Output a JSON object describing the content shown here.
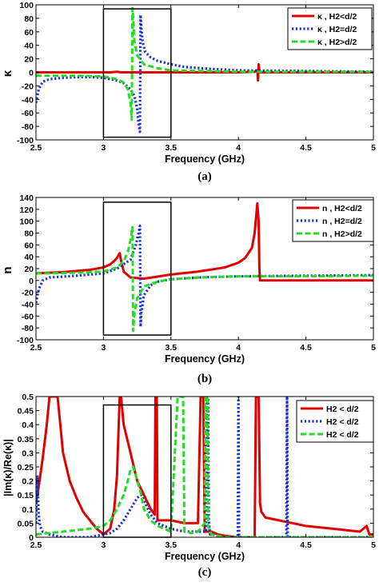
{
  "chart_data": [
    {
      "type": "line",
      "panel_label": "(a)",
      "xlabel": "Frequency (GHz)",
      "ylabel": "κ",
      "xlim": [
        2.5,
        5
      ],
      "ylim": [
        -100,
        100
      ],
      "xticks": [
        "2.5",
        "3",
        "3.5",
        "4",
        "4.5",
        "5"
      ],
      "yticks": [
        "-100",
        "-80",
        "-60",
        "-40",
        "-20",
        "0",
        "20",
        "40",
        "60",
        "80",
        "100"
      ],
      "legend_position": "top-right",
      "highlight_box": {
        "x": [
          3.0,
          3.5
        ],
        "y": [
          -96,
          94
        ]
      },
      "series": [
        {
          "name": "κ , H2<d/2",
          "color": "#e00000",
          "style": "solid",
          "x": [
            2.5,
            2.8,
            3.05,
            3.1,
            3.13,
            3.2,
            3.5,
            4.0,
            4.12,
            4.14,
            4.145,
            4.15,
            4.155,
            4.16,
            4.2,
            4.5,
            5.0
          ],
          "y": [
            0,
            0,
            0,
            1,
            0,
            0,
            0,
            0,
            1,
            3,
            -12,
            12,
            2,
            0,
            0,
            0,
            0
          ]
        },
        {
          "name": "κ , H2=d/2",
          "color": "#1a2fd6",
          "style": "dotted",
          "x": [
            2.5,
            2.52,
            2.55,
            2.6,
            2.7,
            2.8,
            2.9,
            3.0,
            3.05,
            3.1,
            3.15,
            3.2,
            3.23,
            3.25,
            3.26,
            3.27,
            3.275,
            3.28,
            3.29,
            3.31,
            3.35,
            3.4,
            3.5,
            3.6,
            3.8,
            4.0,
            4.5,
            5.0
          ],
          "y": [
            -45,
            -25,
            -14,
            -10,
            -8,
            -7,
            -7,
            -8,
            -10,
            -12,
            -16,
            -25,
            -35,
            -55,
            -75,
            -88,
            85,
            65,
            45,
            30,
            22,
            17,
            12,
            8,
            5,
            3,
            2,
            1
          ]
        },
        {
          "name": "κ , H2>d/2",
          "color": "#22dd22",
          "style": "dashed",
          "x": [
            2.5,
            2.6,
            2.8,
            3.0,
            3.05,
            3.1,
            3.15,
            3.18,
            3.2,
            3.21,
            3.215,
            3.22,
            3.23,
            3.25,
            3.3,
            3.4,
            3.5,
            4.0,
            4.5,
            5.0
          ],
          "y": [
            -5,
            -5,
            -5,
            -6,
            -8,
            -10,
            -15,
            -25,
            -45,
            -70,
            95,
            80,
            45,
            25,
            12,
            6,
            3,
            1,
            1,
            1
          ]
        }
      ]
    },
    {
      "type": "line",
      "panel_label": "(b)",
      "xlabel": "Frequency (GHz)",
      "ylabel": "n",
      "xlim": [
        2.5,
        5
      ],
      "ylim": [
        -100,
        140
      ],
      "xticks": [
        "2.5",
        "3",
        "3.5",
        "4",
        "4.5",
        "5"
      ],
      "yticks": [
        "-100",
        "-80",
        "-60",
        "-40",
        "-20",
        "0",
        "20",
        "40",
        "60",
        "80",
        "100",
        "120",
        "140"
      ],
      "legend_position": "top-right",
      "highlight_box": {
        "x": [
          3.0,
          3.5
        ],
        "y": [
          -92,
          132
        ]
      },
      "series": [
        {
          "name": "n , H2<d/2",
          "color": "#e00000",
          "style": "solid",
          "x": [
            2.5,
            2.7,
            2.9,
            3.0,
            3.05,
            3.08,
            3.1,
            3.12,
            3.13,
            3.15,
            3.2,
            3.3,
            3.5,
            3.7,
            3.9,
            4.0,
            4.05,
            4.1,
            4.12,
            4.14,
            4.15,
            4.155,
            4.16,
            4.2,
            4.5,
            5.0
          ],
          "y": [
            12,
            14,
            18,
            22,
            27,
            33,
            38,
            46,
            35,
            15,
            5,
            3,
            10,
            15,
            22,
            30,
            38,
            55,
            80,
            130,
            100,
            20,
            0,
            0,
            0,
            0
          ]
        },
        {
          "name": "n , H2=d/2",
          "color": "#1a2fd6",
          "style": "dotted",
          "x": [
            2.5,
            2.52,
            2.55,
            2.6,
            2.8,
            3.0,
            3.1,
            3.2,
            3.24,
            3.26,
            3.27,
            3.275,
            3.28,
            3.3,
            3.35,
            3.4,
            3.5,
            3.7,
            4.0,
            4.5,
            5.0
          ],
          "y": [
            -38,
            -15,
            0,
            5,
            8,
            12,
            20,
            35,
            60,
            80,
            92,
            -78,
            -55,
            -25,
            -8,
            -2,
            2,
            5,
            7,
            8,
            9
          ]
        },
        {
          "name": "n , H2>d/2",
          "color": "#22dd22",
          "style": "dashed",
          "x": [
            2.5,
            2.6,
            2.8,
            3.0,
            3.1,
            3.15,
            3.18,
            3.2,
            3.215,
            3.22,
            3.23,
            3.25,
            3.3,
            3.4,
            3.5,
            3.7,
            4.0,
            4.5,
            5.0
          ],
          "y": [
            12,
            12,
            13,
            15,
            22,
            32,
            48,
            68,
            90,
            -85,
            -55,
            -30,
            -10,
            -2,
            2,
            5,
            7,
            7,
            8
          ]
        }
      ]
    },
    {
      "type": "line",
      "panel_label": "(c)",
      "xlabel": "Frequency (GHz)",
      "ylabel": "|Im(κ)/Re(κ)|",
      "xlim": [
        2.5,
        5
      ],
      "ylim": [
        0,
        0.5
      ],
      "xticks": [
        "2.5",
        "3",
        "3.5",
        "4",
        "4.5",
        "5"
      ],
      "yticks": [
        "0",
        "0.05",
        "0.1",
        "0.15",
        "0.2",
        "0.25",
        "0.3",
        "0.35",
        "0.4",
        "0.45",
        "0.5"
      ],
      "legend_position": "top-right",
      "highlight_box": {
        "x": [
          3.0,
          3.5
        ],
        "y": [
          0,
          0.47
        ]
      },
      "series": [
        {
          "name": "H2 < d/2",
          "color": "#e00000",
          "style": "solid",
          "x": [
            2.5,
            2.52,
            2.55,
            2.58,
            2.6,
            2.62,
            2.64,
            2.66,
            2.7,
            2.75,
            2.8,
            2.85,
            2.9,
            2.95,
            3.0,
            3.05,
            3.08,
            3.1,
            3.12,
            3.13,
            3.15,
            3.2,
            3.25,
            3.3,
            3.35,
            3.38,
            3.385,
            3.39,
            3.395,
            3.4,
            3.45,
            3.5,
            3.6,
            3.7,
            3.72,
            3.73,
            3.74,
            3.75,
            3.8,
            3.85,
            3.9,
            4.0,
            4.1,
            4.12,
            4.13,
            4.14,
            4.15,
            4.16,
            4.17,
            4.2,
            4.3,
            4.5,
            4.7,
            4.9,
            4.95,
            4.97,
            5.0
          ],
          "y": [
            0.12,
            0.18,
            0.28,
            0.4,
            0.5,
            0.5,
            0.5,
            0.5,
            0.3,
            0.2,
            0.14,
            0.09,
            0.06,
            0.03,
            0.01,
            0.03,
            0.1,
            0.22,
            0.5,
            0.5,
            0.4,
            0.3,
            0.2,
            0.15,
            0.1,
            0.08,
            0.5,
            0.5,
            0.5,
            0.06,
            0.06,
            0.06,
            0.05,
            0.05,
            0.5,
            0.5,
            0.5,
            0.02,
            0.02,
            0.01,
            0.005,
            0.0,
            0.0,
            0.0,
            0.5,
            0.5,
            0.5,
            0.12,
            0.09,
            0.07,
            0.06,
            0.04,
            0.03,
            0.02,
            0.04,
            0.01,
            0.01
          ]
        },
        {
          "name": "H2 < d/2",
          "color": "#1a2fd6",
          "style": "dotted",
          "x": [
            2.5,
            2.505,
            2.51,
            2.515,
            2.52,
            2.53,
            2.55,
            2.6,
            2.7,
            2.8,
            2.9,
            3.0,
            3.05,
            3.1,
            3.15,
            3.2,
            3.25,
            3.28,
            3.3,
            3.35,
            3.4,
            3.5,
            3.6,
            3.76,
            3.765,
            3.77,
            3.775,
            3.78,
            3.79,
            3.8,
            3.9,
            3.995,
            4.0,
            4.005,
            4.01,
            4.1,
            4.2,
            4.355,
            4.36,
            4.365,
            4.37,
            4.5,
            5.0
          ],
          "y": [
            0.05,
            0.15,
            0.22,
            0.15,
            0.08,
            0.04,
            0.02,
            0.01,
            0.0,
            0.0,
            0.0,
            0.01,
            0.015,
            0.03,
            0.06,
            0.1,
            0.14,
            0.15,
            0.13,
            0.08,
            0.05,
            0.03,
            0.02,
            0.02,
            0.5,
            0.5,
            0.5,
            0.06,
            0.01,
            0.01,
            0.0,
            0.0,
            0.5,
            0.0,
            0.0,
            0.0,
            0.0,
            0.0,
            0.5,
            0.0,
            0.0,
            0.0,
            0.0
          ]
        },
        {
          "name": "H2 < d/2",
          "color": "#22dd22",
          "style": "dashed",
          "x": [
            2.5,
            2.6,
            2.7,
            2.8,
            2.9,
            3.0,
            3.05,
            3.1,
            3.15,
            3.18,
            3.2,
            3.22,
            3.24,
            3.28,
            3.3,
            3.35,
            3.4,
            3.45,
            3.5,
            3.55,
            3.59,
            3.6,
            3.61,
            3.65,
            3.7,
            3.75,
            3.755,
            3.76,
            3.765,
            3.77,
            3.775,
            3.8,
            3.9,
            4.0,
            4.5,
            5.0
          ],
          "y": [
            0.01,
            0.015,
            0.02,
            0.025,
            0.03,
            0.04,
            0.06,
            0.1,
            0.15,
            0.2,
            0.24,
            0.25,
            0.22,
            0.15,
            0.1,
            0.06,
            0.04,
            0.03,
            0.02,
            0.5,
            0.5,
            0.02,
            0.02,
            0.015,
            0.02,
            0.05,
            0.5,
            0.5,
            0.5,
            0.5,
            0.04,
            0.01,
            0.0,
            0.0,
            0.0,
            0.0
          ]
        }
      ]
    }
  ]
}
